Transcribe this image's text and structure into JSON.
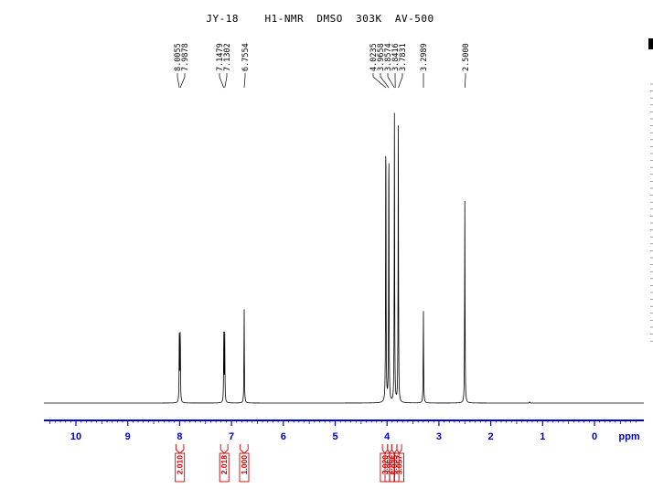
{
  "title": "JY-18    H1-NMR  DMSO  303K  AV-500",
  "colors": {
    "spectrum": "#000000",
    "axis": "#0000cc",
    "integral": "#cc0000"
  },
  "chart_data": {
    "type": "line",
    "title": "JY-18    H1-NMR  DMSO  303K  AV-500",
    "xlabel": "ppm",
    "xlim": [
      10.6,
      -0.9
    ],
    "x_reversed": true,
    "ticks": [
      {
        "value": 10,
        "label": "10"
      },
      {
        "value": 9,
        "label": "9"
      },
      {
        "value": 8,
        "label": "8"
      },
      {
        "value": 7,
        "label": "7"
      },
      {
        "value": 6,
        "label": "6"
      },
      {
        "value": 5,
        "label": "5"
      },
      {
        "value": 4,
        "label": "4"
      },
      {
        "value": 3,
        "label": "3"
      },
      {
        "value": 2,
        "label": "2"
      },
      {
        "value": 1,
        "label": "1"
      },
      {
        "value": 0,
        "label": "0"
      }
    ],
    "unit": "ppm",
    "peaks": [
      {
        "ppm": 8.0055,
        "intensity": 0.25
      },
      {
        "ppm": 7.9878,
        "intensity": 0.25
      },
      {
        "ppm": 7.1479,
        "intensity": 0.23
      },
      {
        "ppm": 7.1302,
        "intensity": 0.23
      },
      {
        "ppm": 6.7554,
        "intensity": 0.32
      },
      {
        "ppm": 4.0235,
        "intensity": 1.0
      },
      {
        "ppm": 3.9658,
        "intensity": 0.95
      },
      {
        "ppm": 3.8574,
        "intensity": 0.99
      },
      {
        "ppm": 3.7831,
        "intensity": 0.93
      },
      {
        "ppm": 3.2989,
        "intensity": 0.32
      },
      {
        "ppm": 2.5,
        "intensity": 0.68
      },
      {
        "ppm": 1.25,
        "intensity": 0.004
      }
    ],
    "peak_labels": [
      {
        "text": "8.0055",
        "ppm": 8.0055
      },
      {
        "text": "7.9878",
        "ppm": 7.9878
      },
      {
        "text": "7.1479",
        "ppm": 7.1479
      },
      {
        "text": "7.1302",
        "ppm": 7.1302
      },
      {
        "text": "6.7554",
        "ppm": 6.7554
      },
      {
        "text": "4.0235",
        "ppm": 4.0235
      },
      {
        "text": "3.9658",
        "ppm": 3.9658
      },
      {
        "text": "3.8574",
        "ppm": 3.8574
      },
      {
        "text": "3.8416",
        "ppm": 3.8416
      },
      {
        "text": "3.7831",
        "ppm": 3.7831
      },
      {
        "text": "3.2989",
        "ppm": 3.2989
      },
      {
        "text": "2.5000",
        "ppm": 2.5
      }
    ],
    "integrals": [
      {
        "value": "2.010",
        "from": 8.07,
        "to": 7.92
      },
      {
        "value": "2.018",
        "from": 7.21,
        "to": 7.07
      },
      {
        "value": "1.000",
        "from": 6.83,
        "to": 6.68
      },
      {
        "value": "3.020",
        "from": 4.09,
        "to": 3.99
      },
      {
        "value": "2.962",
        "from": 3.99,
        "to": 3.91
      },
      {
        "value": "6.035",
        "from": 3.91,
        "to": 3.81
      },
      {
        "value": "3.057",
        "from": 3.81,
        "to": 3.72
      }
    ]
  }
}
